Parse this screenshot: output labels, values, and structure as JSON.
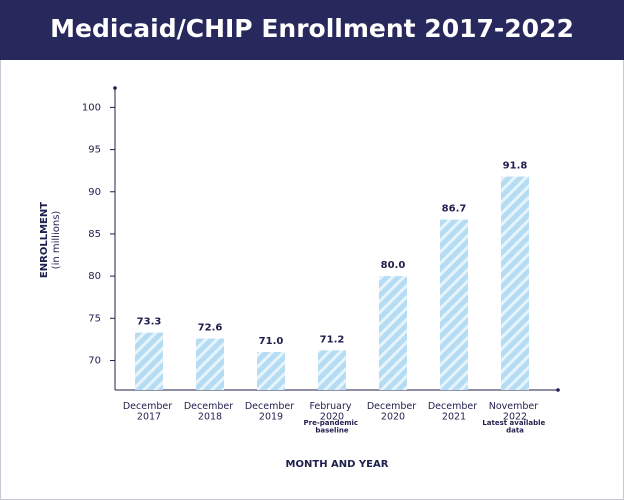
{
  "chart_data": {
    "type": "bar",
    "title": "Medicaid/CHIP Enrollment 2017-2022",
    "y_label": "ENROLLMENT",
    "y_sublabel": "(in millions)",
    "x_label": "MONTH AND YEAR",
    "categories": [
      "December 2017",
      "December 2018",
      "December 2019",
      "February 2020",
      "December 2020",
      "December 2021",
      "November 2022"
    ],
    "category_notes": [
      null,
      null,
      null,
      "Pre-pandemic baseline",
      null,
      null,
      "Latest available data"
    ],
    "values": [
      73.3,
      72.6,
      71.0,
      71.2,
      80.0,
      86.7,
      91.8
    ],
    "value_labels": [
      "73.3",
      "72.6",
      "71.0",
      "71.2",
      "80.0",
      "86.7",
      "91.8"
    ],
    "color": "#b5dcf3",
    "ylim": [
      66.5,
      102.3
    ],
    "yticks": [
      70,
      75,
      80,
      85,
      90,
      95,
      100
    ]
  }
}
